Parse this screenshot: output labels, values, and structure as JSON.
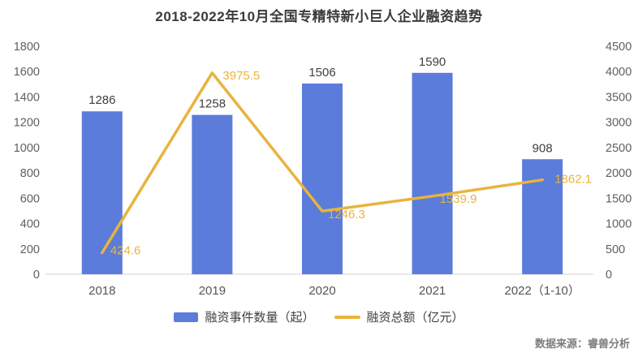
{
  "chart_data": {
    "type": "bar+line",
    "title": "2018-2022年10月全国专精特新小巨人企业融资趋势",
    "categories": [
      "2018",
      "2019",
      "2020",
      "2021",
      "2022（1-10）"
    ],
    "series": [
      {
        "name": "融资事件数量（起）",
        "type": "bar",
        "axis": "left",
        "values": [
          1286,
          1258,
          1506,
          1590,
          908
        ],
        "color": "#5B7CDA"
      },
      {
        "name": "融资总额（亿元）",
        "type": "line",
        "axis": "right",
        "values": [
          424.6,
          3975.5,
          1246.3,
          1539.9,
          1862.1
        ],
        "color": "#E9B33C"
      }
    ],
    "axes": {
      "left": {
        "min": 0,
        "max": 1800,
        "step": 200
      },
      "right": {
        "min": 0,
        "max": 4500,
        "step": 500
      }
    },
    "grid": false,
    "legend_position": "bottom"
  },
  "footer": {
    "source": "数据来源：睿兽分析"
  }
}
